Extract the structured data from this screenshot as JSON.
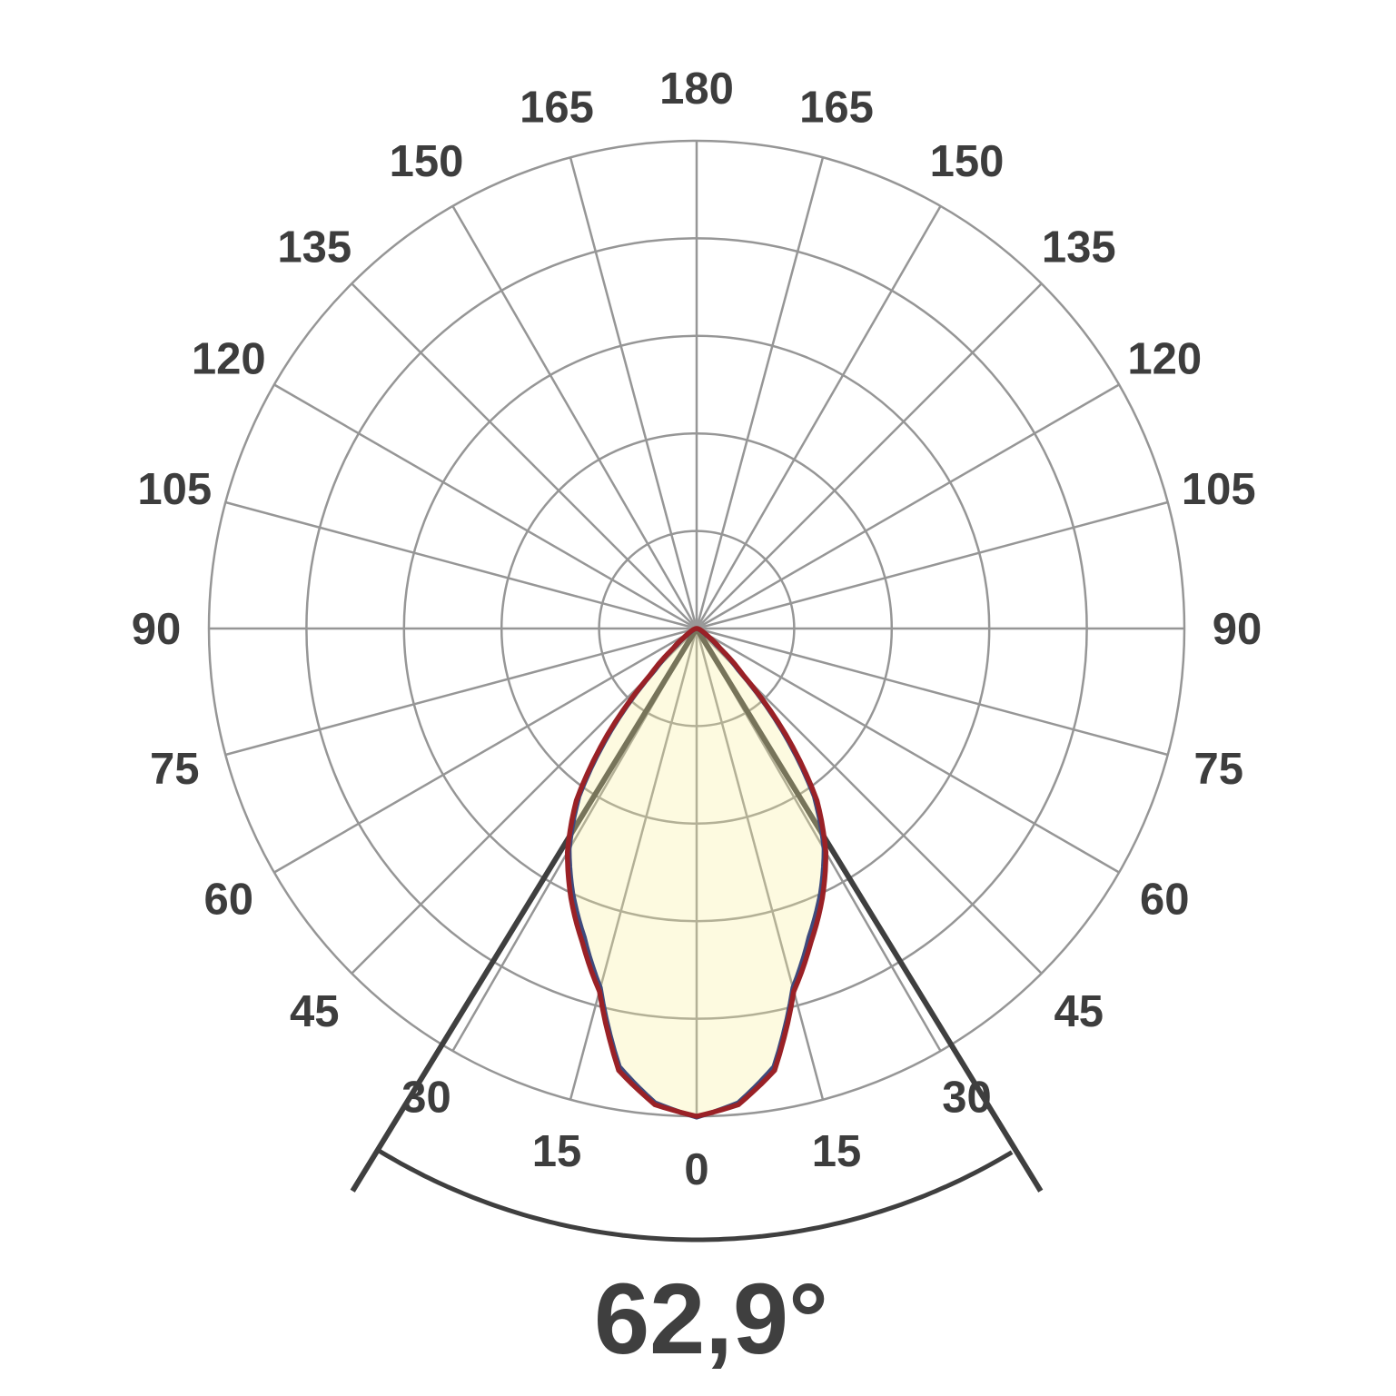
{
  "chart_data": {
    "type": "polar",
    "beam_angle_label": "62,9°",
    "beam_angle_deg": 62.9,
    "beam_half_angle_deg": 31.45,
    "angle_tick_labels": [
      "0",
      "15",
      "30",
      "45",
      "60",
      "75",
      "90",
      "105",
      "120",
      "135",
      "150",
      "165",
      "180"
    ],
    "angle_tick_step_deg": 15,
    "spoke_step_deg": 15,
    "ring_count": 5,
    "radial_range": [
      0,
      1
    ],
    "background_color": "#ffffff",
    "grid_color": "#969696",
    "tick_label_color": "#3d3d3d",
    "marker_color": "#3f3f3f",
    "center_dot_color": "#9a9a9a",
    "lobe_fill_color": "#f7f099",
    "lobe_fill_opacity": 0.3,
    "series": [
      {
        "name": "curve-blue",
        "color": "#3e4a7d",
        "angles_deg": [
          0,
          5,
          10,
          15,
          20,
          25,
          30,
          35,
          40,
          45,
          50,
          55,
          60,
          65,
          70,
          75,
          80,
          85,
          90
        ],
        "values_rel": [
          1.002,
          0.976,
          0.912,
          0.762,
          0.673,
          0.6,
          0.522,
          0.42,
          0.272,
          0.122,
          0.053,
          0.025,
          0.013,
          0.008,
          0.004,
          0.002,
          0.001,
          0.0005,
          0
        ]
      },
      {
        "name": "curve-red",
        "color": "#9a2126",
        "angles_deg": [
          0,
          5,
          10,
          15,
          20,
          25,
          30,
          35,
          40,
          45,
          50,
          55,
          60,
          65,
          70,
          75,
          80,
          85,
          90
        ],
        "values_rel": [
          1.0,
          0.98,
          0.92,
          0.77,
          0.685,
          0.61,
          0.53,
          0.43,
          0.285,
          0.135,
          0.062,
          0.032,
          0.018,
          0.012,
          0.008,
          0.005,
          0.003,
          0.002,
          0
        ]
      }
    ]
  }
}
